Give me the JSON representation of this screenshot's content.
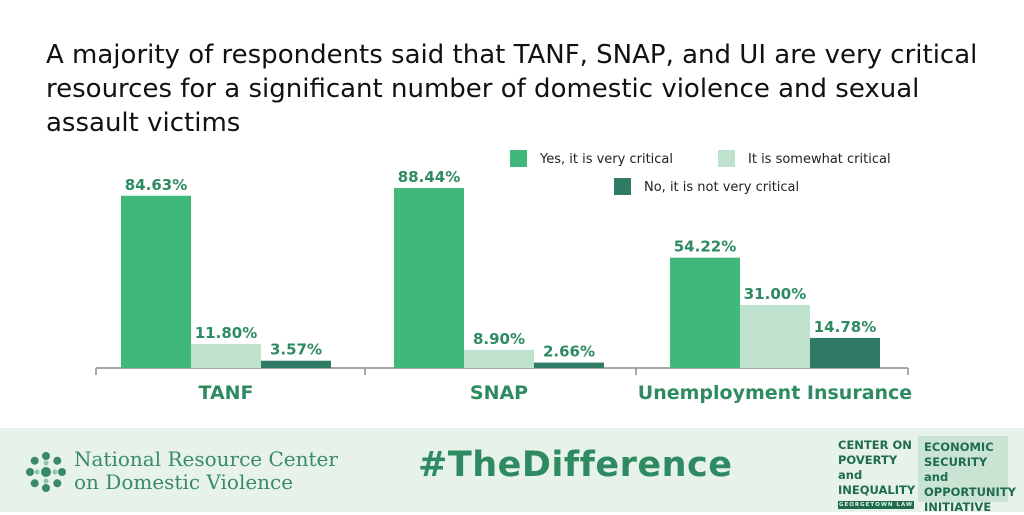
{
  "title": "A majority of respondents said that TANF, SNAP, and UI are very critical resources for a significant number of domestic violence and sexual assault victims",
  "chart_data": {
    "type": "bar",
    "categories": [
      "TANF",
      "SNAP",
      "Unemployment Insurance"
    ],
    "series": [
      {
        "name": "Yes, it is very critical",
        "color": "#40b77b",
        "values": [
          84.63,
          88.44,
          54.22
        ],
        "labels": [
          "84.63%",
          "88.44%",
          "54.22%"
        ]
      },
      {
        "name": "It is somewhat critical",
        "color": "#bfe2cf",
        "values": [
          11.8,
          8.9,
          31.0
        ],
        "labels": [
          "11.80%",
          "8.90%",
          "31.00%"
        ]
      },
      {
        "name": "No, it is not very critical",
        "color": "#2f7b65",
        "values": [
          3.57,
          2.66,
          14.78
        ],
        "labels": [
          "3.57%",
          "2.66%",
          "14.78%"
        ]
      }
    ],
    "unit": "%",
    "ylim": [
      0,
      100
    ],
    "grid": false,
    "legend_position": "top-right",
    "label_color": "#2e8b61"
  },
  "footer": {
    "org_line1": "National Resource Center",
    "org_line2": "on Domestic Violence",
    "hashtag": "#TheDifference",
    "cpi_lines": [
      "CENTER ON",
      "POVERTY and",
      "INEQUALITY"
    ],
    "cpi_subline": "GEORGETOWN LAW",
    "esi_lines": [
      "ECONOMIC",
      "SECURITY and",
      "OPPORTUNITY",
      "INITIATIVE"
    ]
  }
}
